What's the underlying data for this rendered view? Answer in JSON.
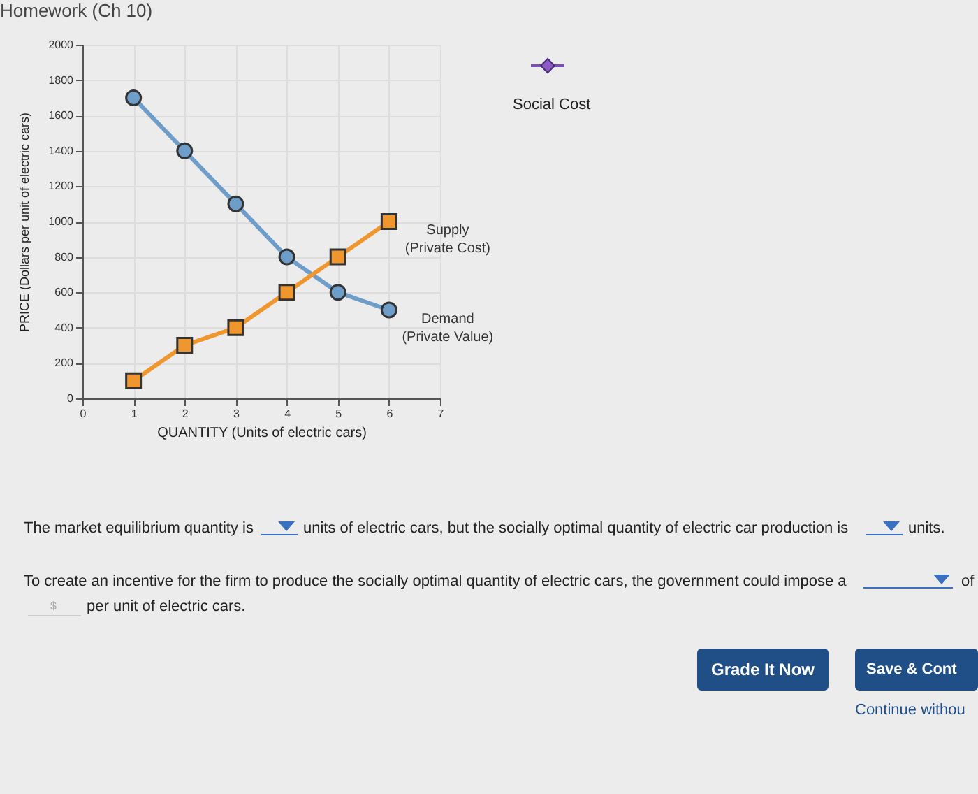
{
  "chart_data": {
    "type": "line",
    "title": "Homework (Ch 10)",
    "xlabel": "QUANTITY (Units of electric cars)",
    "ylabel": "PRICE (Dollars per unit of electric cars)",
    "x": [
      1,
      2,
      3,
      4,
      5,
      6
    ],
    "series": [
      {
        "name": "Demand (Private Value)",
        "color": "#6f9dc9",
        "marker": "circle",
        "values": [
          1700,
          1400,
          1100,
          800,
          600,
          500
        ]
      },
      {
        "name": "Supply (Private Cost)",
        "color": "#f0962e",
        "marker": "square",
        "values": [
          100,
          300,
          400,
          600,
          800,
          1000
        ]
      }
    ],
    "xlim": [
      0,
      7
    ],
    "xticks": [
      0,
      1,
      2,
      3,
      4,
      5,
      6,
      7
    ],
    "ylim": [
      0,
      2000
    ],
    "yticks": [
      0,
      200,
      400,
      600,
      800,
      1000,
      1200,
      1400,
      1600,
      1800,
      2000
    ],
    "grid": true,
    "annotations": [
      "Social Cost",
      "The market equilibrium quantity is",
      "units of electric cars, but the socially optimal quantity of electric car production is",
      "units.",
      "To create an incentive for the firm to produce the socially optimal quantity of electric cars, the government could impose a",
      "of",
      "$",
      "per unit of electric cars.",
      "Grade It Now",
      "Save & Cont",
      "Continue withou"
    ]
  }
}
